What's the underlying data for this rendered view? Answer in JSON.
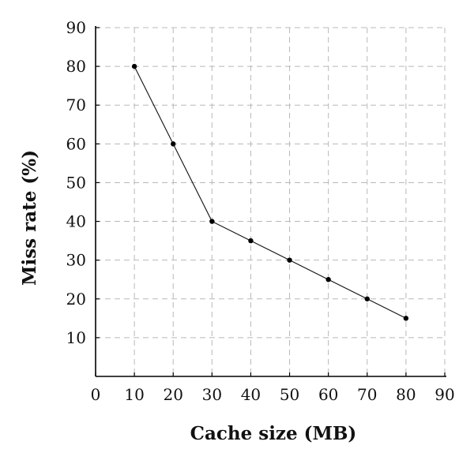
{
  "chart_data": {
    "type": "line",
    "title": "",
    "xlabel": "Cache size (MB)",
    "ylabel": "Miss rate (%)",
    "xlim": [
      0,
      90
    ],
    "ylim": [
      0,
      90
    ],
    "x_ticks": [
      "0",
      "10",
      "20",
      "30",
      "40",
      "50",
      "60",
      "70",
      "80",
      "90"
    ],
    "y_ticks": [
      "10",
      "20",
      "30",
      "40",
      "50",
      "60",
      "70",
      "80",
      "90"
    ],
    "grid": true,
    "grid_style": "dashed",
    "series": [
      {
        "x": [
          10,
          20,
          30,
          40,
          50,
          60,
          70,
          80
        ],
        "values": [
          80,
          60,
          40,
          35,
          30,
          25,
          20,
          15
        ],
        "marker": "circle",
        "color": "#000000"
      }
    ]
  }
}
